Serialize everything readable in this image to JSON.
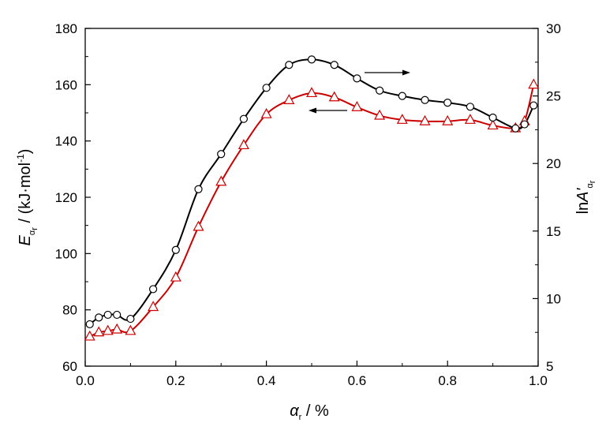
{
  "chart_data": {
    "type": "line",
    "x": [
      0.01,
      0.03,
      0.05,
      0.07,
      0.1,
      0.15,
      0.2,
      0.25,
      0.3,
      0.35,
      0.4,
      0.45,
      0.5,
      0.55,
      0.6,
      0.65,
      0.7,
      0.75,
      0.8,
      0.85,
      0.9,
      0.95,
      0.97,
      0.99
    ],
    "series": [
      {
        "axis": "left",
        "color": "#cc0000",
        "marker": "triangle",
        "values": [
          70.5,
          72,
          72.5,
          73,
          72.5,
          81,
          91.5,
          109.5,
          125.5,
          138.5,
          149.5,
          154.5,
          157,
          155.5,
          152,
          149,
          147.5,
          147,
          147,
          147.5,
          145.5,
          144.5,
          147,
          160
        ]
      },
      {
        "axis": "right",
        "color": "#000000",
        "marker": "circle",
        "values": [
          8.1,
          8.6,
          8.8,
          8.8,
          8.5,
          10.7,
          13.6,
          18.1,
          20.7,
          23.3,
          25.6,
          27.3,
          27.7,
          27.3,
          26.3,
          25.4,
          25.0,
          24.7,
          24.5,
          24.2,
          23.4,
          22.6,
          22.9,
          24.3
        ]
      }
    ],
    "xlim": [
      0.0,
      1.0
    ],
    "ylim_left": [
      60,
      180
    ],
    "ylim_right": [
      5,
      30
    ],
    "x_ticks": [
      "0.0",
      "0.2",
      "0.4",
      "0.6",
      "0.8",
      "1.0"
    ],
    "y_left_ticks": [
      "60",
      "80",
      "100",
      "120",
      "140",
      "160",
      "180"
    ],
    "y_right_ticks": [
      "5",
      "10",
      "15",
      "20",
      "25",
      "30"
    ],
    "grid": false,
    "legend": "none",
    "annotations": [
      "arrow pointing right toward the right axis (black curve)",
      "arrow pointing left toward the left axis (red curve)"
    ]
  },
  "labels": {
    "xlabel_symbol": "α",
    "xlabel_sub": "r",
    "xlabel_unit": " / %",
    "ylabel_left_symbol": "E",
    "ylabel_left_sub": "α",
    "ylabel_left_subsub": "r",
    "ylabel_left_unit": " / (kJ·mol",
    "ylabel_left_sup": "-1",
    "ylabel_left_close": ")",
    "ylabel_right_prefix": "ln",
    "ylabel_right_symbol": "A'",
    "ylabel_right_sub": "α",
    "ylabel_right_subsub": "r"
  }
}
